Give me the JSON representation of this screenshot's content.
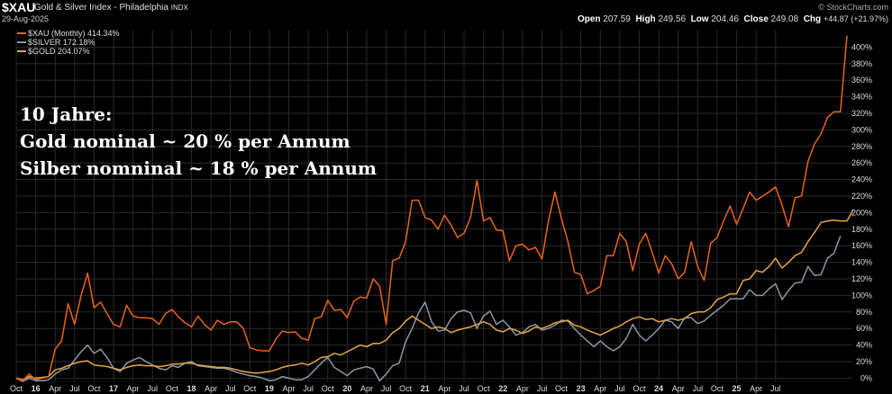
{
  "header": {
    "symbol": "$XAU",
    "name": "Gold & Silver Index - Philadelphia",
    "exchange": "INDX",
    "date": "29-Aug-2025",
    "brand": "© StockCharts.com",
    "open_label": "Open",
    "open": "207.59",
    "high_label": "High",
    "high": "249.56",
    "low_label": "Low",
    "low": "204.46",
    "close_label": "Close",
    "close": "249.08",
    "chg_label": "Chg",
    "chg": "+44.87 (+21.97%)"
  },
  "annotation": {
    "line1": "10 Jahre:",
    "line2": "Gold nominal ~ 20 % per Annum",
    "line3": "Silber nomninal ~ 18 % per Annum"
  },
  "colors": {
    "background": "#000000",
    "xau": "#e8641b",
    "silver": "#8c96a6",
    "gold": "#e3a64a",
    "grid": "#2a2a2a"
  },
  "chart_data": {
    "type": "line",
    "title": "$XAU Gold & Silver Index - Philadelphia",
    "ylabel": "",
    "ylim": [
      -5,
      420
    ],
    "yticks": [
      "0%",
      "20%",
      "40%",
      "60%",
      "80%",
      "100%",
      "120%",
      "140%",
      "160%",
      "180%",
      "200%",
      "220%",
      "240%",
      "260%",
      "280%",
      "300%",
      "320%",
      "340%",
      "360%",
      "380%",
      "400%"
    ],
    "x_axis": {
      "start": "Oct 2015",
      "end": "Aug 2025",
      "labels": [
        "Oct",
        "16",
        "Apr",
        "Jul",
        "Oct",
        "17",
        "Apr",
        "Jul",
        "Oct",
        "18",
        "Apr",
        "Jul",
        "Oct",
        "19",
        "Apr",
        "Jul",
        "Oct",
        "20",
        "Apr",
        "Jul",
        "Oct",
        "21",
        "Apr",
        "Jul",
        "Oct",
        "22",
        "Apr",
        "Jul",
        "Oct",
        "23",
        "Apr",
        "Jul",
        "Oct",
        "24",
        "Apr",
        "Jul",
        "Oct",
        "25",
        "Apr",
        "Jul"
      ]
    },
    "legend_position": "top-left",
    "series": [
      {
        "name": "$XAU (Monthly) 414.34%",
        "color": "#e8641b",
        "values": [
          0,
          -3,
          5,
          -2,
          0,
          2,
          35,
          45,
          90,
          65,
          100,
          127,
          85,
          92,
          78,
          65,
          62,
          88,
          75,
          73,
          73,
          72,
          65,
          78,
          83,
          74,
          67,
          62,
          75,
          65,
          58,
          70,
          65,
          68,
          68,
          60,
          37,
          34,
          33,
          33,
          47,
          57,
          55,
          56,
          48,
          46,
          72,
          74,
          94,
          82,
          83,
          73,
          93,
          98,
          97,
          120,
          111,
          65,
          142,
          145,
          165,
          215,
          215,
          194,
          191,
          180,
          197,
          185,
          170,
          175,
          194,
          239,
          190,
          194,
          179,
          178,
          142,
          160,
          162,
          155,
          158,
          144,
          190,
          225,
          193,
          165,
          128,
          125,
          102,
          106,
          111,
          148,
          148,
          175,
          165,
          130,
          162,
          175,
          152,
          127,
          148,
          138,
          120,
          128,
          165,
          135,
          118,
          163,
          170,
          190,
          208,
          186,
          205,
          225,
          215,
          220,
          225,
          231,
          209,
          183,
          218,
          220,
          262,
          283,
          295,
          315,
          322,
          322,
          414
        ]
      },
      {
        "name": "$SILVER 172.18%",
        "color": "#8c96a6",
        "values": [
          0,
          -4,
          0,
          -3,
          -3,
          -2,
          5,
          10,
          12,
          22,
          32,
          40,
          30,
          35,
          25,
          12,
          8,
          18,
          22,
          25,
          20,
          16,
          12,
          10,
          15,
          13,
          18,
          20,
          15,
          14,
          13,
          12,
          12,
          10,
          7,
          5,
          3,
          2,
          0,
          -3,
          -2,
          2,
          0,
          -2,
          -2,
          2,
          10,
          18,
          25,
          13,
          8,
          3,
          10,
          12,
          14,
          11,
          -3,
          5,
          15,
          18,
          44,
          60,
          79,
          92,
          68,
          57,
          58,
          72,
          80,
          82,
          79,
          60,
          75,
          81,
          65,
          70,
          62,
          52,
          55,
          62,
          65,
          58,
          60,
          64,
          70,
          69,
          60,
          52,
          45,
          38,
          45,
          38,
          33,
          38,
          48,
          65,
          52,
          45,
          52,
          60,
          70,
          68,
          60,
          73,
          73,
          66,
          69,
          76,
          82,
          88,
          96,
          96,
          96,
          107,
          100,
          100,
          108,
          114,
          95,
          106,
          115,
          116,
          135,
          124,
          125,
          145,
          151,
          172
        ]
      },
      {
        "name": "$GOLD 204.07%",
        "color": "#e3a64a",
        "values": [
          0,
          -2,
          2,
          0,
          1,
          2,
          10,
          12,
          15,
          18,
          20,
          21,
          16,
          15,
          14,
          12,
          10,
          13,
          15,
          16,
          15,
          15,
          14,
          15,
          17,
          17,
          18,
          18,
          16,
          15,
          14,
          13,
          13,
          12,
          10,
          8,
          7,
          6,
          7,
          8,
          10,
          13,
          15,
          16,
          18,
          16,
          20,
          25,
          26,
          30,
          28,
          32,
          36,
          40,
          38,
          42,
          42,
          46,
          55,
          60,
          69,
          75,
          70,
          65,
          60,
          62,
          60,
          55,
          58,
          60,
          62,
          65,
          68,
          65,
          58,
          56,
          60,
          58,
          54,
          57,
          62,
          60,
          63,
          67,
          68,
          70,
          64,
          62,
          58,
          55,
          52,
          56,
          60,
          63,
          68,
          72,
          74,
          71,
          72,
          68,
          70,
          72,
          70,
          72,
          78,
          80,
          80,
          85,
          95,
          98,
          102,
          102,
          118,
          120,
          130,
          128,
          135,
          145,
          133,
          140,
          148,
          152,
          165,
          176,
          188,
          190,
          191,
          190,
          190,
          204
        ]
      }
    ]
  }
}
